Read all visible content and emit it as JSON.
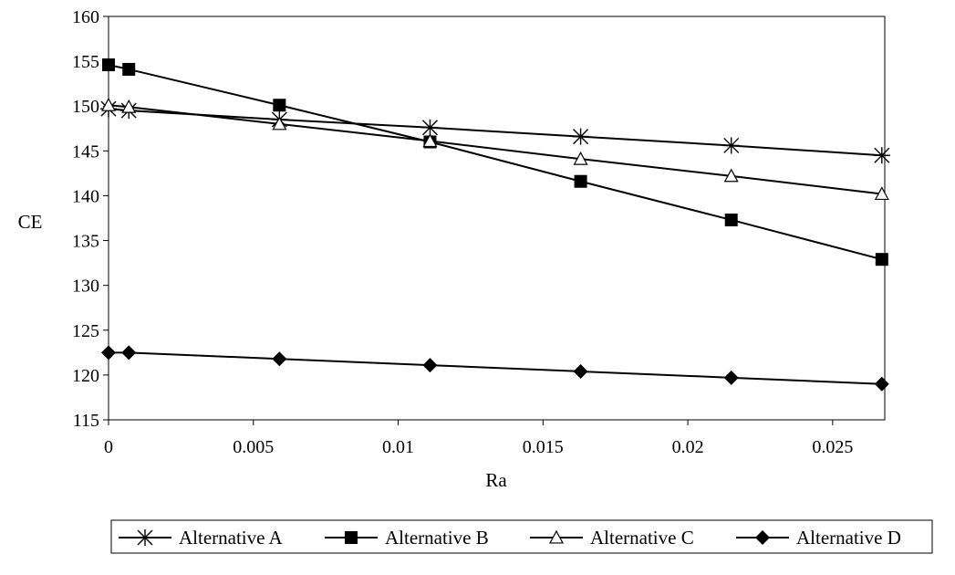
{
  "chart_data": {
    "type": "line",
    "title": "",
    "xlabel": "Ra",
    "ylabel": "CE",
    "xlim": [
      0,
      0.0268
    ],
    "ylim": [
      115,
      160
    ],
    "x_ticks": [
      0,
      0.005,
      0.01,
      0.015,
      0.02,
      0.025
    ],
    "x_tick_labels": [
      "0",
      "0.005",
      "0.01",
      "0.015",
      "0.02",
      "0.025"
    ],
    "y_ticks": [
      115,
      120,
      125,
      130,
      135,
      140,
      145,
      150,
      155,
      160
    ],
    "y_tick_labels": [
      "115",
      "120",
      "125",
      "130",
      "135",
      "140",
      "145",
      "150",
      "155",
      "160"
    ],
    "grid": false,
    "legend_position": "bottom",
    "x": [
      0,
      0.0007,
      0.0059,
      0.0111,
      0.0163,
      0.0215,
      0.0267
    ],
    "series": [
      {
        "name": "Alternative A",
        "marker": "asterisk",
        "color": "#000000",
        "values": [
          149.7,
          149.5,
          148.5,
          147.6,
          146.6,
          145.6,
          144.5
        ]
      },
      {
        "name": "Alternative B",
        "marker": "square",
        "color": "#000000",
        "values": [
          154.6,
          154.1,
          150.1,
          146.0,
          141.6,
          137.3,
          132.9
        ]
      },
      {
        "name": "Alternative C",
        "marker": "triangle-open",
        "color": "#000000",
        "values": [
          150.1,
          149.9,
          148.0,
          146.1,
          144.1,
          142.2,
          140.2
        ]
      },
      {
        "name": "Alternative D",
        "marker": "diamond",
        "color": "#000000",
        "values": [
          122.5,
          122.5,
          121.8,
          121.1,
          120.4,
          119.7,
          119.0
        ]
      }
    ]
  }
}
